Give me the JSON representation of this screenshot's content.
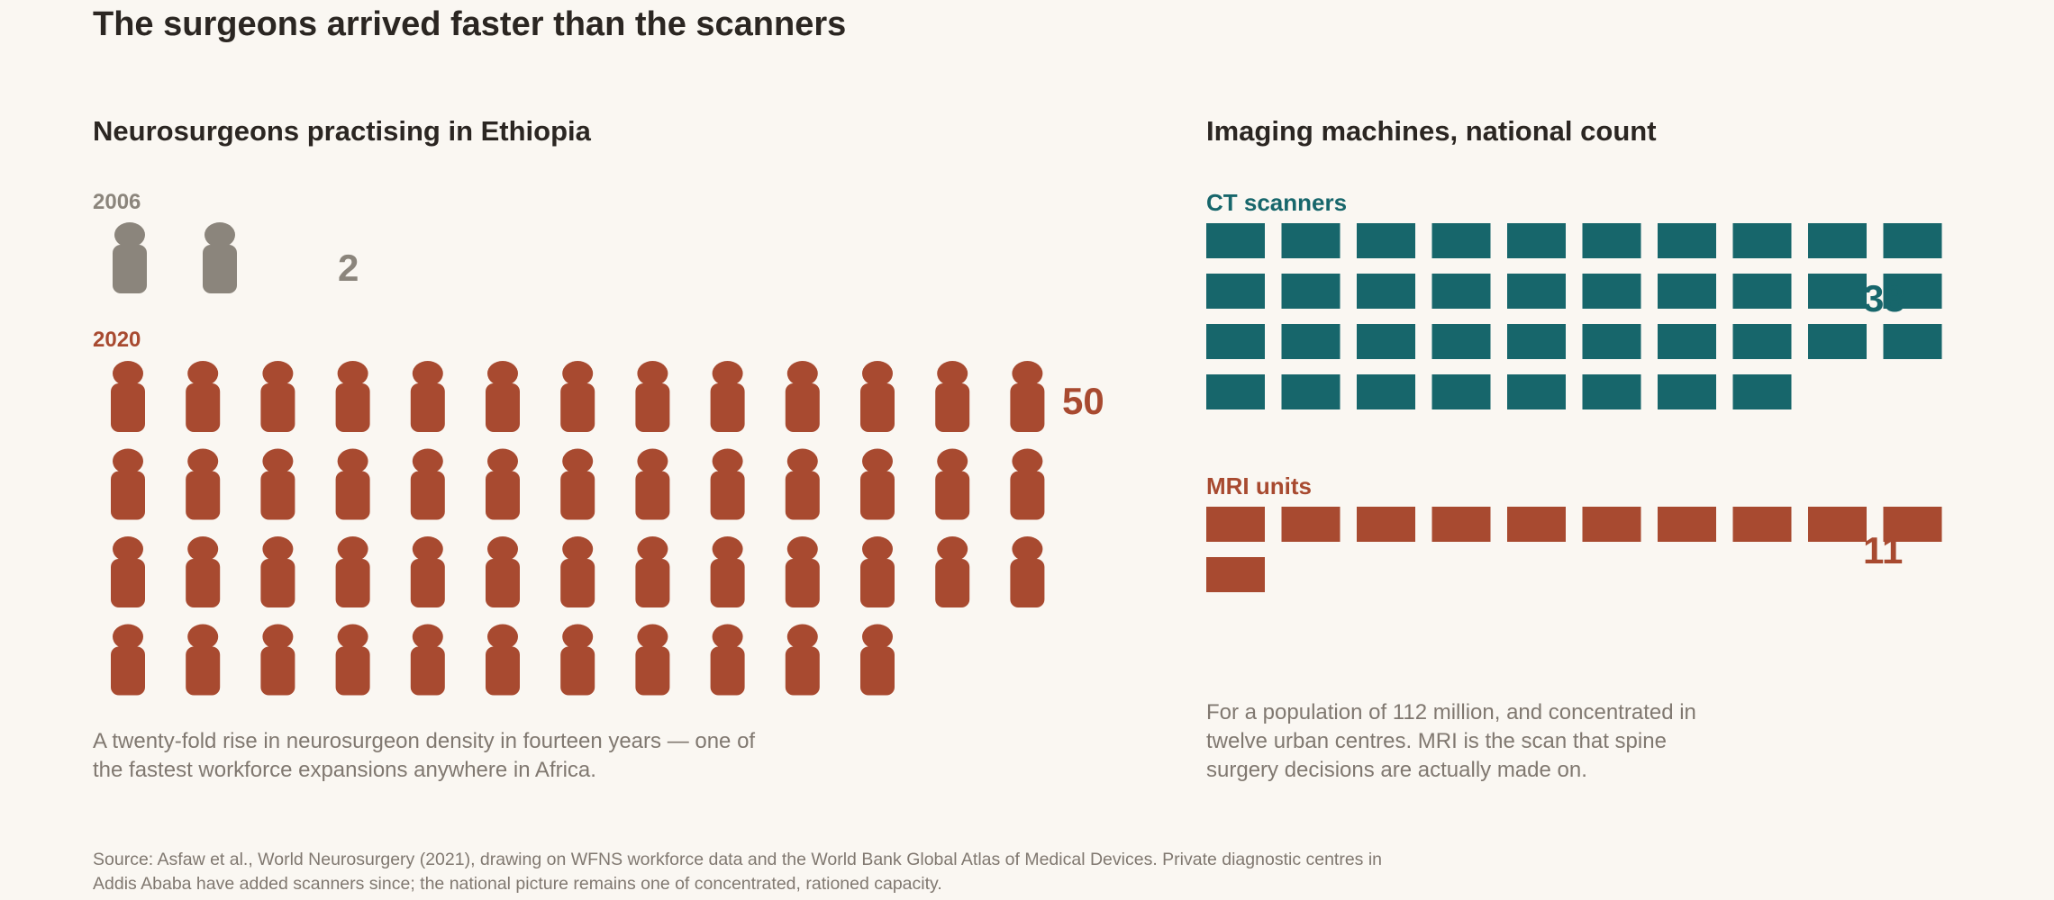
{
  "title": "The surgeons arrived faster than the scanners",
  "colors": {
    "background": "#faf7f2",
    "grey": "#8b857c",
    "rust": "#a84a30",
    "teal": "#17666b",
    "text": "#2b2622",
    "muted": "#807870"
  },
  "icons": {
    "person": "person-icon",
    "machine": "machine-block-icon"
  },
  "chart_data": [
    {
      "type": "pictogram",
      "title": "Neurosurgeons practising in Ethiopia",
      "series": [
        {
          "name": "2006",
          "value": 2,
          "value_label": "2",
          "color": "#8b857c"
        },
        {
          "name": "2020",
          "value": 50,
          "value_label": "50",
          "color": "#a84a30"
        }
      ],
      "icon": "person-icon",
      "note": "A twenty-fold rise in neurosurgeon density in fourteen years — one of the fastest workforce expansions anywhere in Africa."
    },
    {
      "type": "pictogram",
      "title": "Imaging machines, national count",
      "series": [
        {
          "name": "CT scanners",
          "value": 38,
          "value_label": "38",
          "color": "#17666b"
        },
        {
          "name": "MRI units",
          "value": 11,
          "value_label": "11",
          "color": "#a84a30"
        }
      ],
      "icon": "machine-block-icon",
      "note": "For a population of 112 million, and concentrated in twelve urban centres. MRI is the scan that spine surgery decisions are actually made on."
    }
  ],
  "source": "Source: Asfaw et al., World Neurosurgery (2021), drawing on WFNS workforce data and the World Bank Global Atlas of Medical Devices. Private diagnostic centres in Addis Ababa have added scanners since; the national picture remains one of concentrated, rationed capacity."
}
